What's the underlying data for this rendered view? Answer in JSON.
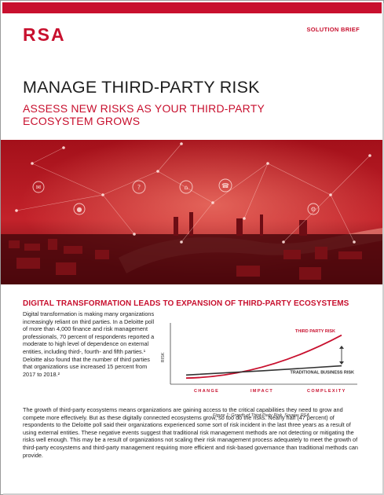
{
  "header": {
    "logo": "RSA",
    "doc_type": "SOLUTION BRIEF"
  },
  "title": "MANAGE THIRD-PARTY RISK",
  "subtitle": "ASSESS NEW RISKS AS YOUR THIRD-PARTY ECOSYSTEM GROWS",
  "section_heading": "DIGITAL TRANSFORMATION LEADS TO EXPANSION OF THIRD-PARTY ECOSYSTEMS",
  "body": {
    "column_paragraph": "Digital transformation is making many organizations increasingly reliant on third parties. In a Deloitte poll of more than 4,000 finance and risk management professionals, 70 percent of respondents reported a moderate to high level of dependence on external entities, including third-, fourth- and fifth parties.¹ Deloitte also found that the number of third parties that organizations use increased 15 percent from 2017 to 2018.²",
    "full_paragraph": "The growth of third-party ecosystems means organizations are gaining access to the critical capabilities they need to grow and compete more effectively. But as these digitally connected ecosystems grow, so too do the risks. Nearly half (47 percent) of respondents to the Deloitte poll said their organizations experienced some sort of risk incident in the last three years as a result of using external entities. These negative events suggest that traditional risk management methods are not detecting or mitigating the risks well enough. This may be a result of organizations not scaling their risk management process adequately to meet the growth of third-party ecosystems and third-party management requiring more efficient and risk-based governance than traditional methods can provide."
  },
  "figure": {
    "caption": "Figure 1: Growth of Third-Party Risk, Source: RSA"
  },
  "colors": {
    "brand_red": "#c8102e",
    "text": "#222222"
  },
  "chart_data": {
    "type": "line",
    "ylabel": "RISK",
    "categories": [
      "CHANGE",
      "IMPACT",
      "COMPLEXITY"
    ],
    "series": [
      {
        "name": "THIRD PARTY RISK",
        "values": [
          1.0,
          2.0,
          8.0
        ]
      },
      {
        "name": "TRADITIONAL BUSINESS RISK",
        "values": [
          1.5,
          2.2,
          3.0
        ]
      }
    ],
    "ylim": [
      0,
      10
    ],
    "grid": false,
    "legend": "inline-labels"
  }
}
